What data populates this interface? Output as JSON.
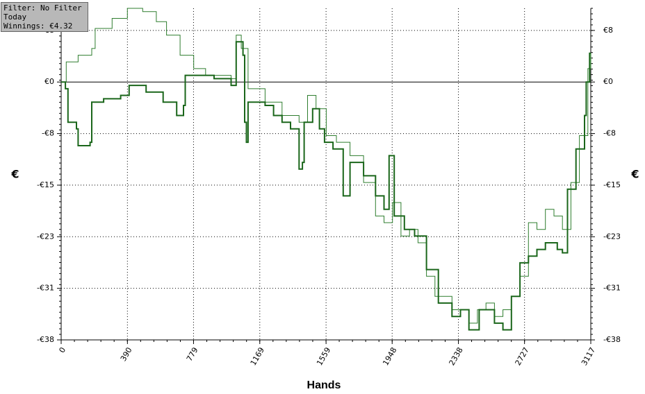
{
  "chart_data": {
    "type": "line",
    "info": [
      "Filter: No Filter",
      "Today",
      "Winnings: €4.32"
    ],
    "xlabel": "Hands",
    "ylabel": "€",
    "y2label": "€",
    "xlim": [
      0,
      3117
    ],
    "xticks": [
      0,
      390,
      779,
      1169,
      1559,
      1948,
      2338,
      2727,
      3117
    ],
    "ylim": [
      -38.5,
      11
    ],
    "yticks": [
      {
        "value": 7.7,
        "label": "€8"
      },
      {
        "value": 0,
        "label": "€0"
      },
      {
        "value": -7.7,
        "label": "-€8"
      },
      {
        "value": -15.4,
        "label": "-€15"
      },
      {
        "value": -23.1,
        "label": "-€23"
      },
      {
        "value": -30.8,
        "label": "-€31"
      },
      {
        "value": -38.5,
        "label": "-€38"
      }
    ],
    "grid": true,
    "series": [
      {
        "color": "#2e7d2e",
        "width": 1,
        "x": [
          0,
          30,
          100,
          180,
          200,
          300,
          390,
          480,
          560,
          620,
          700,
          780,
          850,
          1000,
          1030,
          1060,
          1100,
          1200,
          1300,
          1400,
          1450,
          1500,
          1560,
          1620,
          1700,
          1780,
          1850,
          1900,
          1950,
          2000,
          2050,
          2100,
          2150,
          2200,
          2300,
          2400,
          2450,
          2500,
          2550,
          2600,
          2650,
          2700,
          2750,
          2800,
          2850,
          2900,
          2950,
          3000,
          3050,
          3100,
          3117
        ],
        "values": [
          0,
          3,
          4,
          5,
          8,
          9.5,
          11,
          10.5,
          9,
          7,
          4,
          2,
          1,
          0.5,
          7,
          5,
          -1,
          -3,
          -5,
          -6,
          -2,
          -4,
          -8,
          -9,
          -11,
          -15,
          -20,
          -21,
          -18,
          -23,
          -22,
          -24,
          -29,
          -32,
          -34,
          -36,
          -34,
          -33,
          -35,
          -34,
          -32,
          -29,
          -21,
          -22,
          -19,
          -20,
          -22,
          -15,
          -8,
          2,
          4.3
        ]
      },
      {
        "color": "#1a661a",
        "width": 2,
        "x": [
          0,
          25,
          40,
          90,
          100,
          170,
          180,
          250,
          350,
          400,
          500,
          600,
          680,
          720,
          730,
          800,
          900,
          1000,
          1030,
          1070,
          1080,
          1090,
          1100,
          1200,
          1250,
          1300,
          1350,
          1400,
          1420,
          1430,
          1480,
          1520,
          1550,
          1600,
          1660,
          1700,
          1780,
          1850,
          1900,
          1930,
          1960,
          2020,
          2080,
          2150,
          2220,
          2300,
          2350,
          2400,
          2460,
          2550,
          2600,
          2650,
          2700,
          2750,
          2800,
          2850,
          2920,
          2950,
          2980,
          3030,
          3080,
          3090,
          3110,
          3117
        ],
        "values": [
          0,
          -1,
          -6,
          -7,
          -9.5,
          -9,
          -3,
          -2.5,
          -2,
          -0.5,
          -1.5,
          -3,
          -5,
          -3.5,
          1,
          1,
          0.5,
          -0.5,
          6,
          4,
          -6,
          -9,
          -3,
          -3.5,
          -5,
          -6,
          -7,
          -13,
          -12,
          -6,
          -4,
          -7,
          -9,
          -10,
          -17,
          -12,
          -14,
          -17,
          -19,
          -11,
          -20,
          -22,
          -23,
          -28,
          -33,
          -35,
          -34,
          -37,
          -34,
          -36,
          -37,
          -32,
          -27,
          -26,
          -25,
          -24,
          -25,
          -25.5,
          -16,
          -10,
          -5,
          0,
          4.3,
          4.3
        ]
      }
    ]
  }
}
